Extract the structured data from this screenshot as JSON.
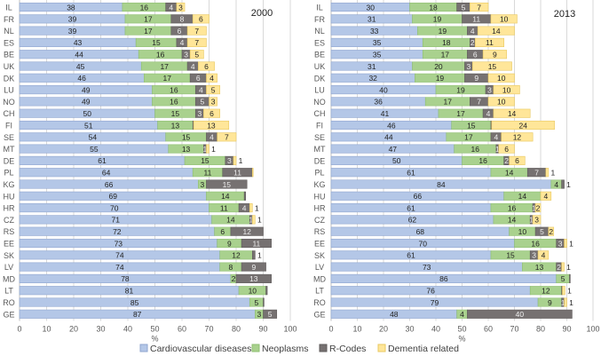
{
  "chart_data": [
    {
      "type": "bar",
      "orientation": "horizontal",
      "stacked": true,
      "title": "2000",
      "xlabel": "%",
      "xlim": [
        0,
        100
      ],
      "xticks": [
        0,
        10,
        20,
        30,
        40,
        50,
        60,
        70,
        80,
        90,
        100
      ],
      "grid": true,
      "categories": [
        "IL",
        "FR",
        "NL",
        "ES",
        "BE",
        "UK",
        "DK",
        "LU",
        "NO",
        "CH",
        "FI",
        "SE",
        "MT",
        "DE",
        "PL",
        "KG",
        "HU",
        "HR",
        "CZ",
        "RS",
        "EE",
        "SK",
        "LV",
        "MD",
        "LT",
        "RO",
        "GE"
      ],
      "series": [
        {
          "name": "Cardiovascular diseases",
          "values": [
            38,
            39,
            39,
            43,
            44,
            45,
            46,
            49,
            49,
            50,
            51,
            54,
            55,
            61,
            64,
            66,
            69,
            70,
            71,
            72,
            73,
            74,
            74,
            78,
            81,
            85,
            87
          ]
        },
        {
          "name": "Neoplasms",
          "values": [
            16,
            17,
            17,
            15,
            16,
            17,
            17,
            16,
            16,
            15,
            13,
            15,
            13,
            15,
            11,
            3,
            14,
            11,
            14,
            6,
            9,
            12,
            8,
            2,
            10,
            5,
            3
          ]
        },
        {
          "name": "R-Codes",
          "values": [
            4,
            8,
            6,
            4,
            3,
            4,
            6,
            4,
            5,
            3,
            0.3,
            4,
            1,
            3,
            11,
            15,
            0.5,
            4,
            1,
            12,
            11,
            1,
            9,
            13,
            0.5,
            0.3,
            5
          ]
        },
        {
          "name": "Dementia related",
          "values": [
            3,
            6,
            7,
            7,
            5,
            6,
            4,
            5,
            3,
            6,
            13,
            7,
            1,
            1,
            0.3,
            0,
            0,
            1,
            1,
            0,
            0,
            0,
            0,
            0,
            0,
            0,
            0
          ]
        }
      ]
    },
    {
      "type": "bar",
      "orientation": "horizontal",
      "stacked": true,
      "title": "2013",
      "xlabel": "%",
      "xlim": [
        0,
        100
      ],
      "xticks": [
        0,
        10,
        20,
        30,
        40,
        50,
        60,
        70,
        80,
        90,
        100
      ],
      "grid": true,
      "categories": [
        "IL",
        "FR",
        "NL",
        "ES",
        "BE",
        "UK",
        "DK",
        "LU",
        "NO",
        "CH",
        "FI",
        "SE",
        "MT",
        "DE",
        "PL",
        "KG",
        "HU",
        "HR",
        "CZ",
        "RS",
        "EE",
        "SK",
        "LV",
        "MD",
        "LT",
        "RO",
        "GE"
      ],
      "series": [
        {
          "name": "Cardiovascular diseases",
          "values": [
            30,
            31,
            33,
            35,
            35,
            31,
            32,
            40,
            36,
            41,
            46,
            44,
            47,
            50,
            61,
            84,
            66,
            61,
            62,
            68,
            70,
            61,
            73,
            86,
            76,
            79,
            48
          ]
        },
        {
          "name": "Neoplasms",
          "values": [
            18,
            19,
            19,
            18,
            17,
            20,
            19,
            19,
            17,
            17,
            15,
            17,
            16,
            16,
            14,
            4,
            14,
            16,
            14,
            10,
            16,
            15,
            13,
            5,
            12,
            9,
            4
          ]
        },
        {
          "name": "R-Codes",
          "values": [
            5,
            11,
            4,
            2,
            6,
            3,
            9,
            3,
            7,
            4,
            0.3,
            4,
            1,
            2,
            7,
            1,
            0,
            1,
            1,
            5,
            3,
            3,
            2,
            0.3,
            0.3,
            1,
            40
          ]
        },
        {
          "name": "Dementia related",
          "values": [
            7,
            10,
            14,
            11,
            9,
            15,
            10,
            10,
            10,
            14,
            24,
            12,
            6,
            6,
            1,
            0,
            4,
            2,
            3,
            2,
            1,
            4,
            1,
            0,
            1,
            1,
            0
          ]
        }
      ]
    }
  ],
  "legend": {
    "placement": "bottom-center",
    "items": [
      "Cardiovascular diseases",
      "Neoplasms",
      "R-Codes",
      "Dementia related"
    ]
  },
  "colors": {
    "fills": [
      "#b4c7e7",
      "#a9d18e",
      "#767171",
      "#ffe699"
    ],
    "strokes": [
      "#8fa6cf",
      "#8fbf72",
      "#5f5b5b",
      "#e8c860"
    ],
    "label_dark": "#222222",
    "label_light": "#eeeeee"
  }
}
